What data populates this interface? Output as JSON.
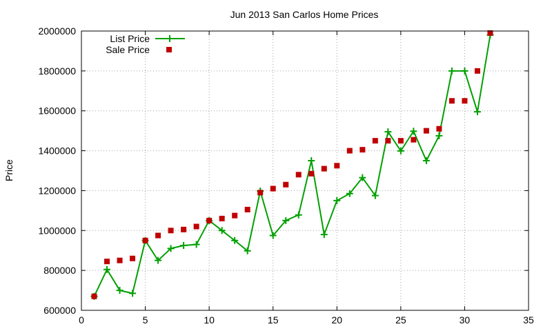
{
  "chart_data": {
    "type": "line",
    "title": "Jun 2013 San Carlos Home Prices",
    "xlabel": "",
    "ylabel": "Price",
    "xlim": [
      0,
      35
    ],
    "ylim": [
      600000,
      2000000
    ],
    "xticks": [
      0,
      5,
      10,
      15,
      20,
      25,
      30,
      35
    ],
    "yticks": [
      600000,
      800000,
      1000000,
      1200000,
      1400000,
      1600000,
      1800000,
      2000000
    ],
    "grid": true,
    "legend_position": "top-left",
    "series": [
      {
        "name": "List Price",
        "style": "line-with-plus-markers",
        "color": "#00a000",
        "x": [
          1,
          2,
          3,
          4,
          5,
          6,
          7,
          8,
          9,
          10,
          11,
          12,
          13,
          14,
          15,
          16,
          17,
          18,
          19,
          20,
          21,
          22,
          23,
          24,
          25,
          26,
          27,
          28,
          29,
          30,
          31,
          32
        ],
        "values": [
          670000,
          805000,
          700000,
          685000,
          950000,
          850000,
          910000,
          925000,
          930000,
          1050000,
          1000000,
          950000,
          898000,
          1198000,
          975000,
          1050000,
          1078000,
          1350000,
          980000,
          1150000,
          1185000,
          1265000,
          1175000,
          1495000,
          1399000,
          1498000,
          1350000,
          1475000,
          1800000,
          1800000,
          1595000,
          1980000
        ]
      },
      {
        "name": "Sale Price",
        "style": "square-markers",
        "color": "#c00000",
        "x": [
          1,
          2,
          3,
          4,
          5,
          6,
          7,
          8,
          9,
          10,
          11,
          12,
          13,
          14,
          15,
          16,
          17,
          18,
          19,
          20,
          21,
          22,
          23,
          24,
          25,
          26,
          27,
          28,
          29,
          30,
          31,
          32
        ],
        "values": [
          670000,
          845000,
          850000,
          860000,
          950000,
          975000,
          1000000,
          1005000,
          1020000,
          1050000,
          1060000,
          1075000,
          1105000,
          1190000,
          1210000,
          1230000,
          1280000,
          1285000,
          1310000,
          1325000,
          1400000,
          1405000,
          1450000,
          1450000,
          1450000,
          1455000,
          1500000,
          1510000,
          1650000,
          1650000,
          1800000,
          1990000
        ]
      }
    ]
  }
}
